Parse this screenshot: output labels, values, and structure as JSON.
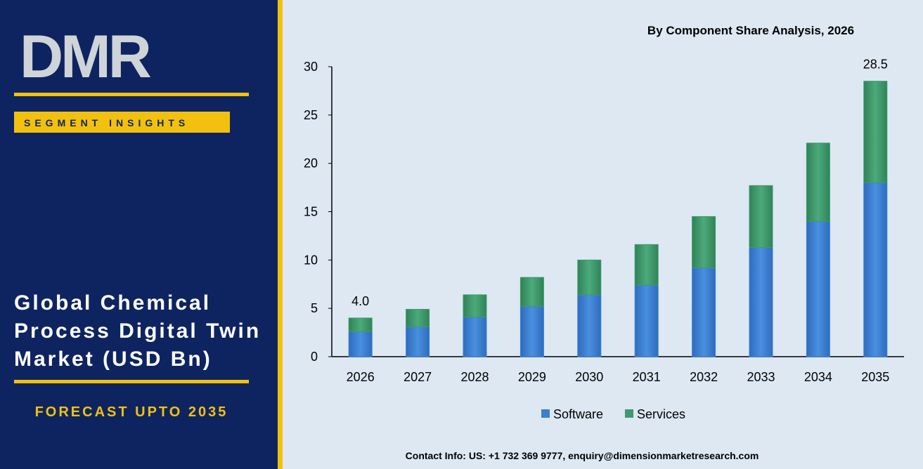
{
  "brand": {
    "logo": "DMR",
    "badge": "SEGMENT INSIGHTS",
    "title_lines": [
      "Global Chemical",
      "Process Digital Twin",
      "Market (USD Bn)"
    ],
    "forecast": "FORECAST UPTO 2035"
  },
  "chart_data": {
    "type": "stacked_bar",
    "title": "By Component Share Analysis, 2026",
    "categories": [
      "2026",
      "2027",
      "2028",
      "2029",
      "2030",
      "2031",
      "2032",
      "2033",
      "2034",
      "2035"
    ],
    "series": [
      {
        "name": "Software",
        "color": "#3b7fd0",
        "values": [
          2.6,
          3.1,
          4.1,
          5.2,
          6.4,
          7.4,
          9.2,
          11.3,
          14.0,
          18.0
        ]
      },
      {
        "name": "Services",
        "color": "#3f9a6c",
        "values": [
          1.4,
          1.8,
          2.3,
          3.0,
          3.6,
          4.2,
          5.3,
          6.4,
          8.1,
          10.5
        ]
      }
    ],
    "annotations": [
      {
        "text": "4.0",
        "category": "2026",
        "y": 4.0
      },
      {
        "text": "28.5",
        "category": "2035",
        "y": 28.5
      }
    ],
    "ylim": [
      0,
      30
    ],
    "yticks": [
      0,
      5,
      10,
      15,
      20,
      25,
      30
    ],
    "legend": "bottom"
  },
  "footer": "Contact Info: US: +1 732 369 9777, enquiry@dimensionmarketresearch.com"
}
